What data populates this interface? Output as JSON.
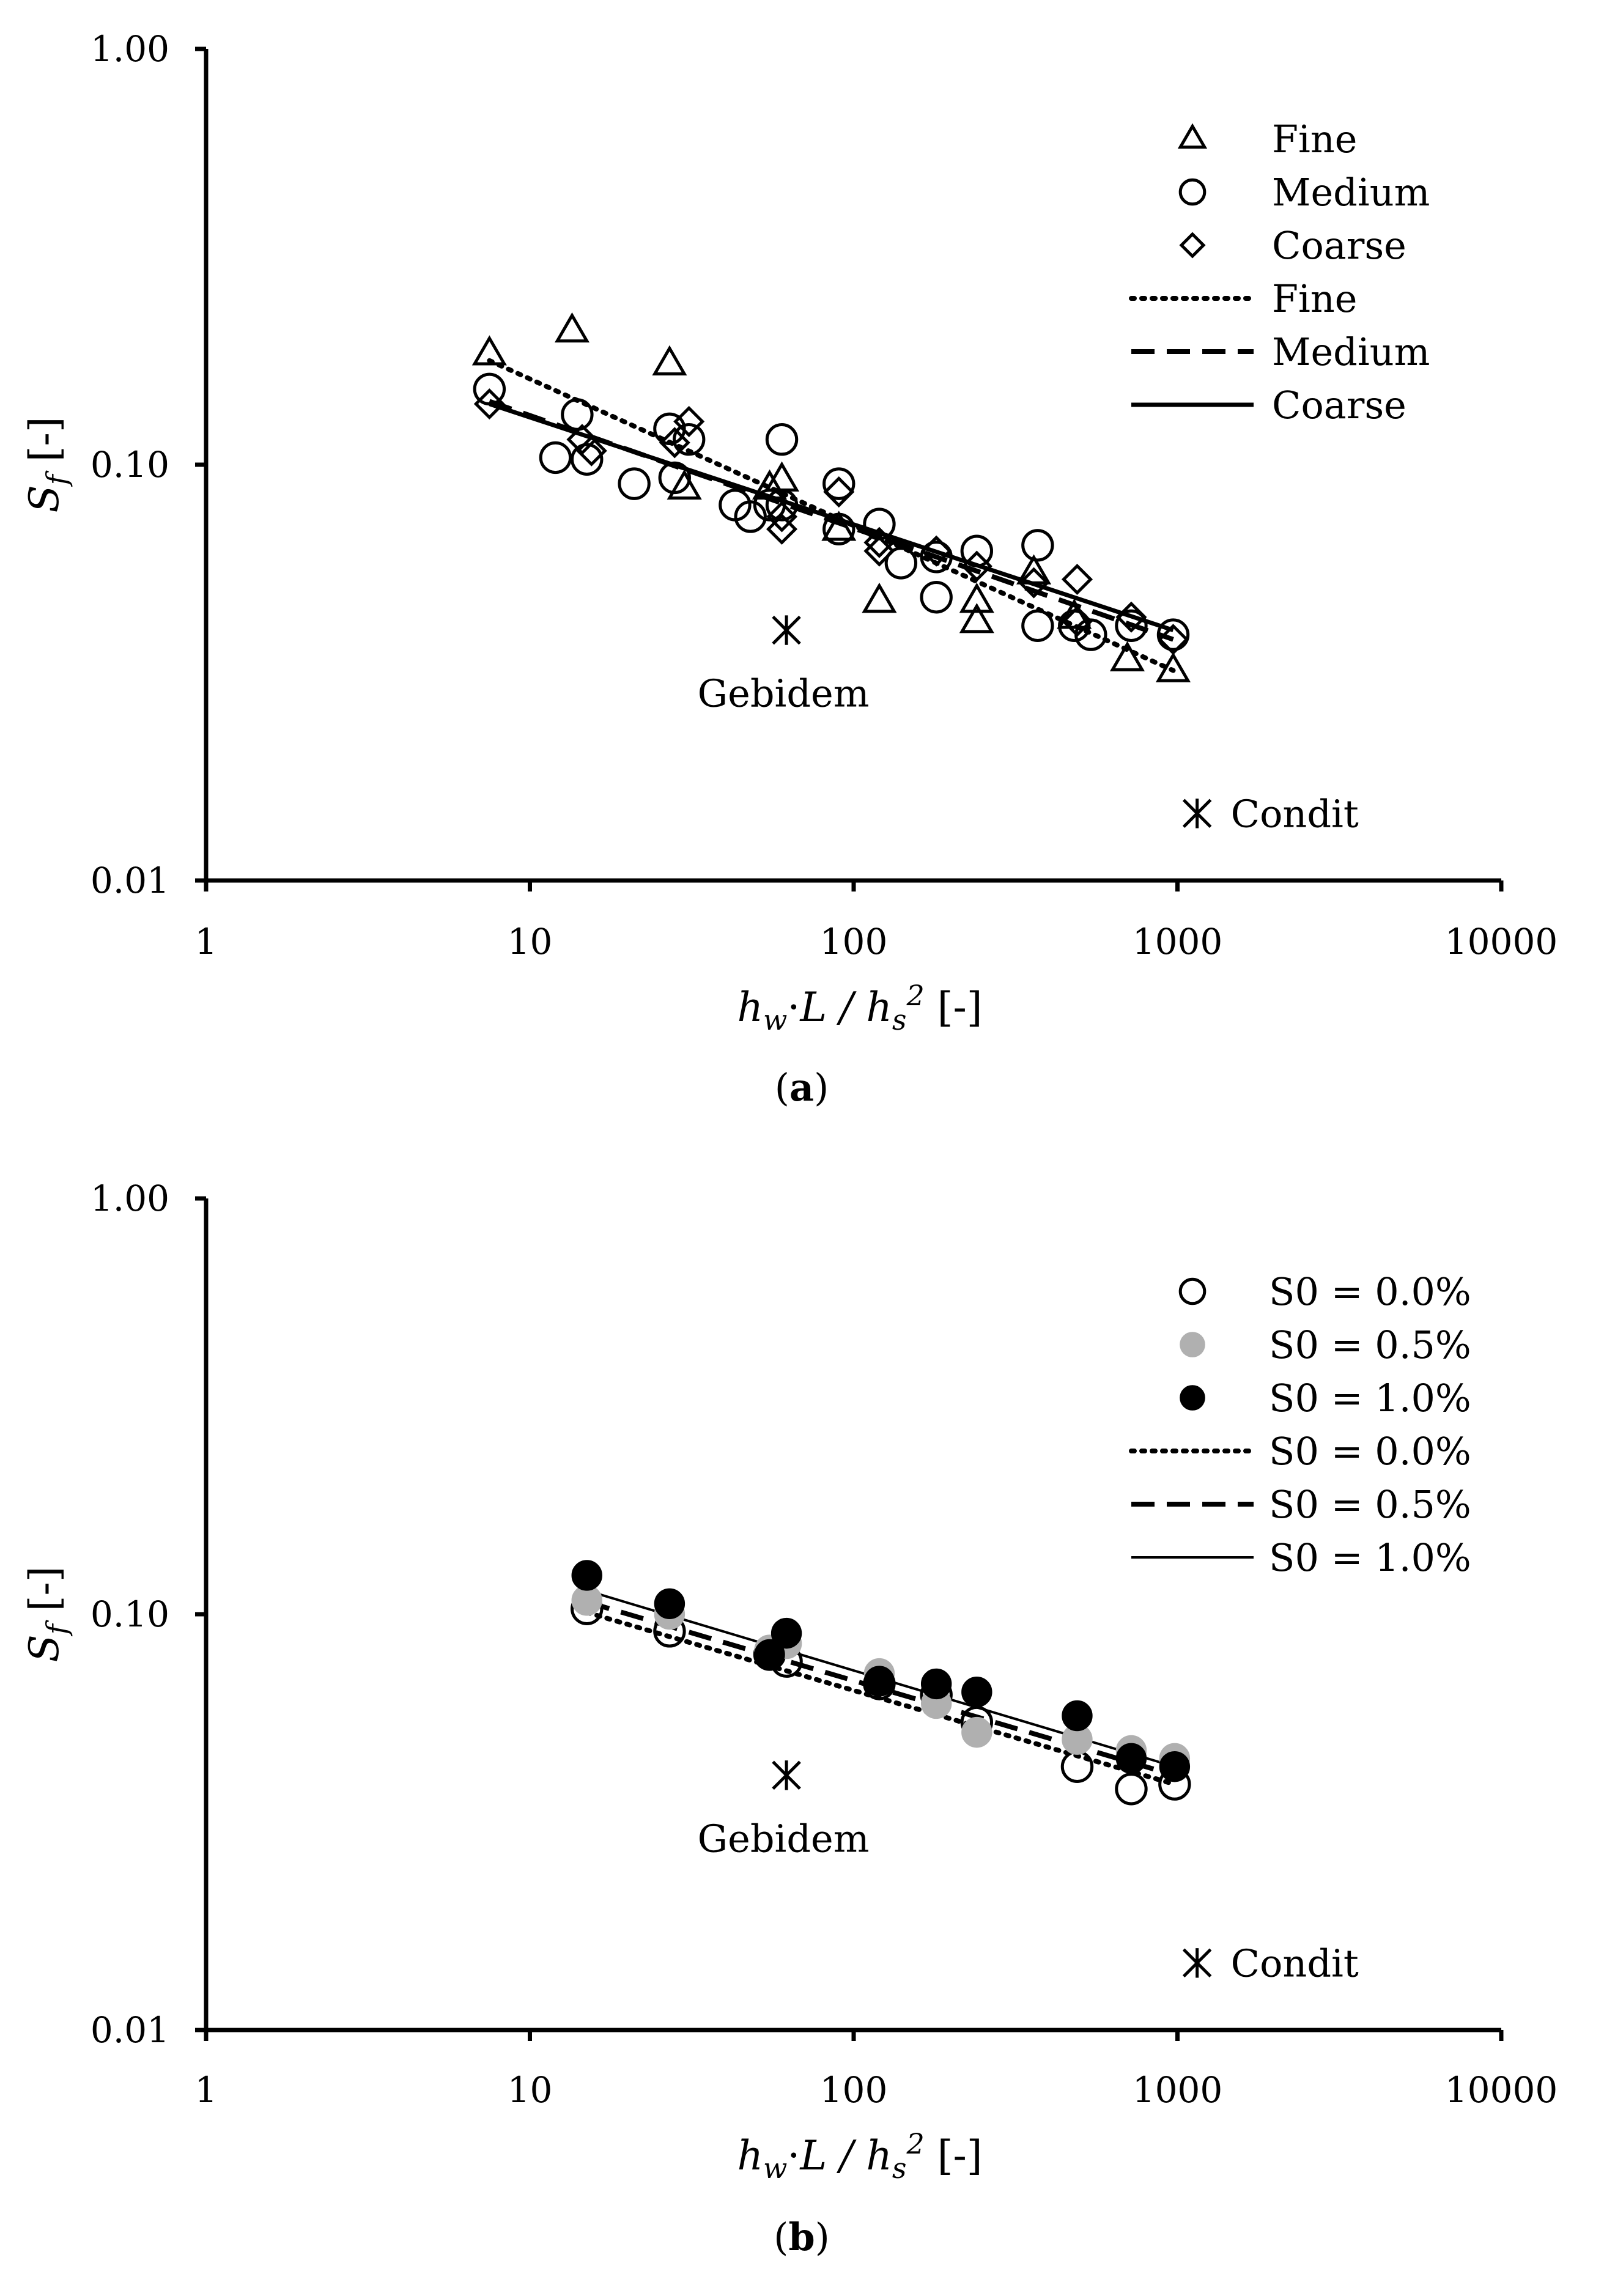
{
  "figure": {
    "panel_a_caption_letter": "a",
    "panel_b_caption_letter": "b"
  },
  "chart_data": [
    {
      "panel": "a",
      "type": "scatter",
      "xscale": "log",
      "yscale": "log",
      "xlim": [
        1,
        10000
      ],
      "ylim": [
        0.01,
        1.0
      ],
      "xticks": [
        "1",
        "10",
        "100",
        "1000",
        "10000"
      ],
      "yticks": [
        "0.01",
        "0.10",
        "1.00"
      ],
      "xlabel": "h_w·L / h_s^2 [-]",
      "ylabel": "S_f [-]",
      "xlabel_parts": {
        "h": "h",
        "w": "w",
        "dot": "·",
        "L": "L / ",
        "hs": "h",
        "s": "s",
        "sq": "2",
        "unit": " [-]"
      },
      "ylabel_parts": {
        "S": "S",
        "f": "f",
        "unit": " [-]"
      },
      "legend": [
        "Fine",
        "Medium",
        "Coarse",
        "Fine",
        "Medium",
        "Coarse"
      ],
      "series": [
        {
          "name": "Fine",
          "marker": "triangle",
          "points": [
            [
              7.5,
              0.185
            ],
            [
              13.5,
              0.21
            ],
            [
              27,
              0.175
            ],
            [
              30,
              0.088
            ],
            [
              55,
              0.088
            ],
            [
              60,
              0.092
            ],
            [
              90,
              0.07
            ],
            [
              120,
              0.047
            ],
            [
              240,
              0.042
            ],
            [
              240,
              0.047
            ],
            [
              360,
              0.055
            ],
            [
              480,
              0.043
            ],
            [
              700,
              0.034
            ],
            [
              970,
              0.032
            ]
          ]
        },
        {
          "name": "Medium",
          "marker": "circle",
          "points": [
            [
              7.5,
              0.152
            ],
            [
              12,
              0.104
            ],
            [
              14,
              0.132
            ],
            [
              15,
              0.103
            ],
            [
              21,
              0.09
            ],
            [
              27,
              0.122
            ],
            [
              28,
              0.093
            ],
            [
              31,
              0.115
            ],
            [
              43,
              0.08
            ],
            [
              48,
              0.075
            ],
            [
              55,
              0.08
            ],
            [
              60,
              0.115
            ],
            [
              60,
              0.08
            ],
            [
              90,
              0.09
            ],
            [
              90,
              0.07
            ],
            [
              120,
              0.072
            ],
            [
              140,
              0.058
            ],
            [
              180,
              0.048
            ],
            [
              180,
              0.06
            ],
            [
              240,
              0.062
            ],
            [
              370,
              0.064
            ],
            [
              370,
              0.041
            ],
            [
              480,
              0.041
            ],
            [
              540,
              0.039
            ],
            [
              720,
              0.041
            ],
            [
              970,
              0.039
            ]
          ]
        },
        {
          "name": "Coarse",
          "marker": "diamond",
          "points": [
            [
              7.5,
              0.14
            ],
            [
              14.5,
              0.115
            ],
            [
              15.5,
              0.108
            ],
            [
              28,
              0.113
            ],
            [
              31,
              0.127
            ],
            [
              60,
              0.07
            ],
            [
              60,
              0.075
            ],
            [
              90,
              0.086
            ],
            [
              120,
              0.065
            ],
            [
              120,
              0.062
            ],
            [
              180,
              0.062
            ],
            [
              240,
              0.057
            ],
            [
              360,
              0.052
            ],
            [
              490,
              0.053
            ],
            [
              490,
              0.042
            ],
            [
              720,
              0.043
            ],
            [
              970,
              0.038
            ]
          ]
        }
      ],
      "fits": [
        {
          "name": "Fine",
          "style": "dotted",
          "x": [
            7.5,
            970
          ],
          "y": [
            0.178,
            0.032
          ]
        },
        {
          "name": "Medium",
          "style": "dashed",
          "x": [
            7.5,
            970
          ],
          "y": [
            0.142,
            0.038
          ]
        },
        {
          "name": "Coarse",
          "style": "solid",
          "x": [
            7.5,
            970
          ],
          "y": [
            0.14,
            0.04
          ]
        }
      ],
      "annotations": [
        {
          "label": "Gebidem",
          "marker": "asterisk",
          "x": 62,
          "y": 0.04
        },
        {
          "label": "Condit",
          "marker": "asterisk",
          "x": 1150,
          "y": 0.0145
        }
      ]
    },
    {
      "panel": "b",
      "type": "scatter",
      "xscale": "log",
      "yscale": "log",
      "xlim": [
        1,
        10000
      ],
      "ylim": [
        0.01,
        1.0
      ],
      "xticks": [
        "1",
        "10",
        "100",
        "1000",
        "10000"
      ],
      "yticks": [
        "0.01",
        "0.10",
        "1.00"
      ],
      "xlabel": "h_w·L / h_s^2 [-]",
      "ylabel": "S_f [-]",
      "xlabel_parts": {
        "h": "h",
        "w": "w",
        "dot": "·",
        "L": "L / ",
        "hs": "h",
        "s": "s",
        "sq": "2",
        "unit": " [-]"
      },
      "ylabel_parts": {
        "S": "S",
        "f": "f",
        "unit": " [-]"
      },
      "legend": [
        "S0 = 0.0%",
        "S0 = 0.5%",
        "S0 = 1.0%",
        "S0 = 0.0%",
        "S0 = 0.5%",
        "S0 = 1.0%"
      ],
      "series": [
        {
          "name": "S0 = 0.0%",
          "marker": "circle-open",
          "color": "#000000",
          "points": [
            [
              15,
              0.103
            ],
            [
              27,
              0.091
            ],
            [
              55,
              0.08
            ],
            [
              62,
              0.077
            ],
            [
              120,
              0.068
            ],
            [
              180,
              0.064
            ],
            [
              240,
              0.055
            ],
            [
              490,
              0.043
            ],
            [
              720,
              0.038
            ],
            [
              980,
              0.039
            ]
          ]
        },
        {
          "name": "S0 = 0.5%",
          "marker": "circle-filled",
          "color": "#b0b0b0",
          "points": [
            [
              15,
              0.108
            ],
            [
              27,
              0.1
            ],
            [
              55,
              0.082
            ],
            [
              62,
              0.085
            ],
            [
              120,
              0.072
            ],
            [
              180,
              0.061
            ],
            [
              240,
              0.052
            ],
            [
              490,
              0.05
            ],
            [
              720,
              0.047
            ],
            [
              980,
              0.045
            ]
          ]
        },
        {
          "name": "S0 = 1.0%",
          "marker": "circle-filled",
          "color": "#000000",
          "points": [
            [
              15,
              0.124
            ],
            [
              27,
              0.106
            ],
            [
              55,
              0.08
            ],
            [
              62,
              0.09
            ],
            [
              120,
              0.069
            ],
            [
              180,
              0.068
            ],
            [
              240,
              0.065
            ],
            [
              490,
              0.057
            ],
            [
              720,
              0.045
            ],
            [
              980,
              0.043
            ]
          ]
        }
      ],
      "fits": [
        {
          "name": "S0 = 0.0%",
          "style": "dotted",
          "x": [
            15,
            980
          ],
          "y": [
            0.101,
            0.039
          ]
        },
        {
          "name": "S0 = 0.5%",
          "style": "dashed",
          "x": [
            15,
            980
          ],
          "y": [
            0.107,
            0.041
          ]
        },
        {
          "name": "S0 = 1.0%",
          "style": "solid-thin",
          "x": [
            15,
            980
          ],
          "y": [
            0.114,
            0.043
          ]
        }
      ],
      "annotations": [
        {
          "label": "Gebidem",
          "marker": "asterisk",
          "x": 62,
          "y": 0.041
        },
        {
          "label": "Condit",
          "marker": "asterisk",
          "x": 1150,
          "y": 0.0145
        }
      ]
    }
  ]
}
